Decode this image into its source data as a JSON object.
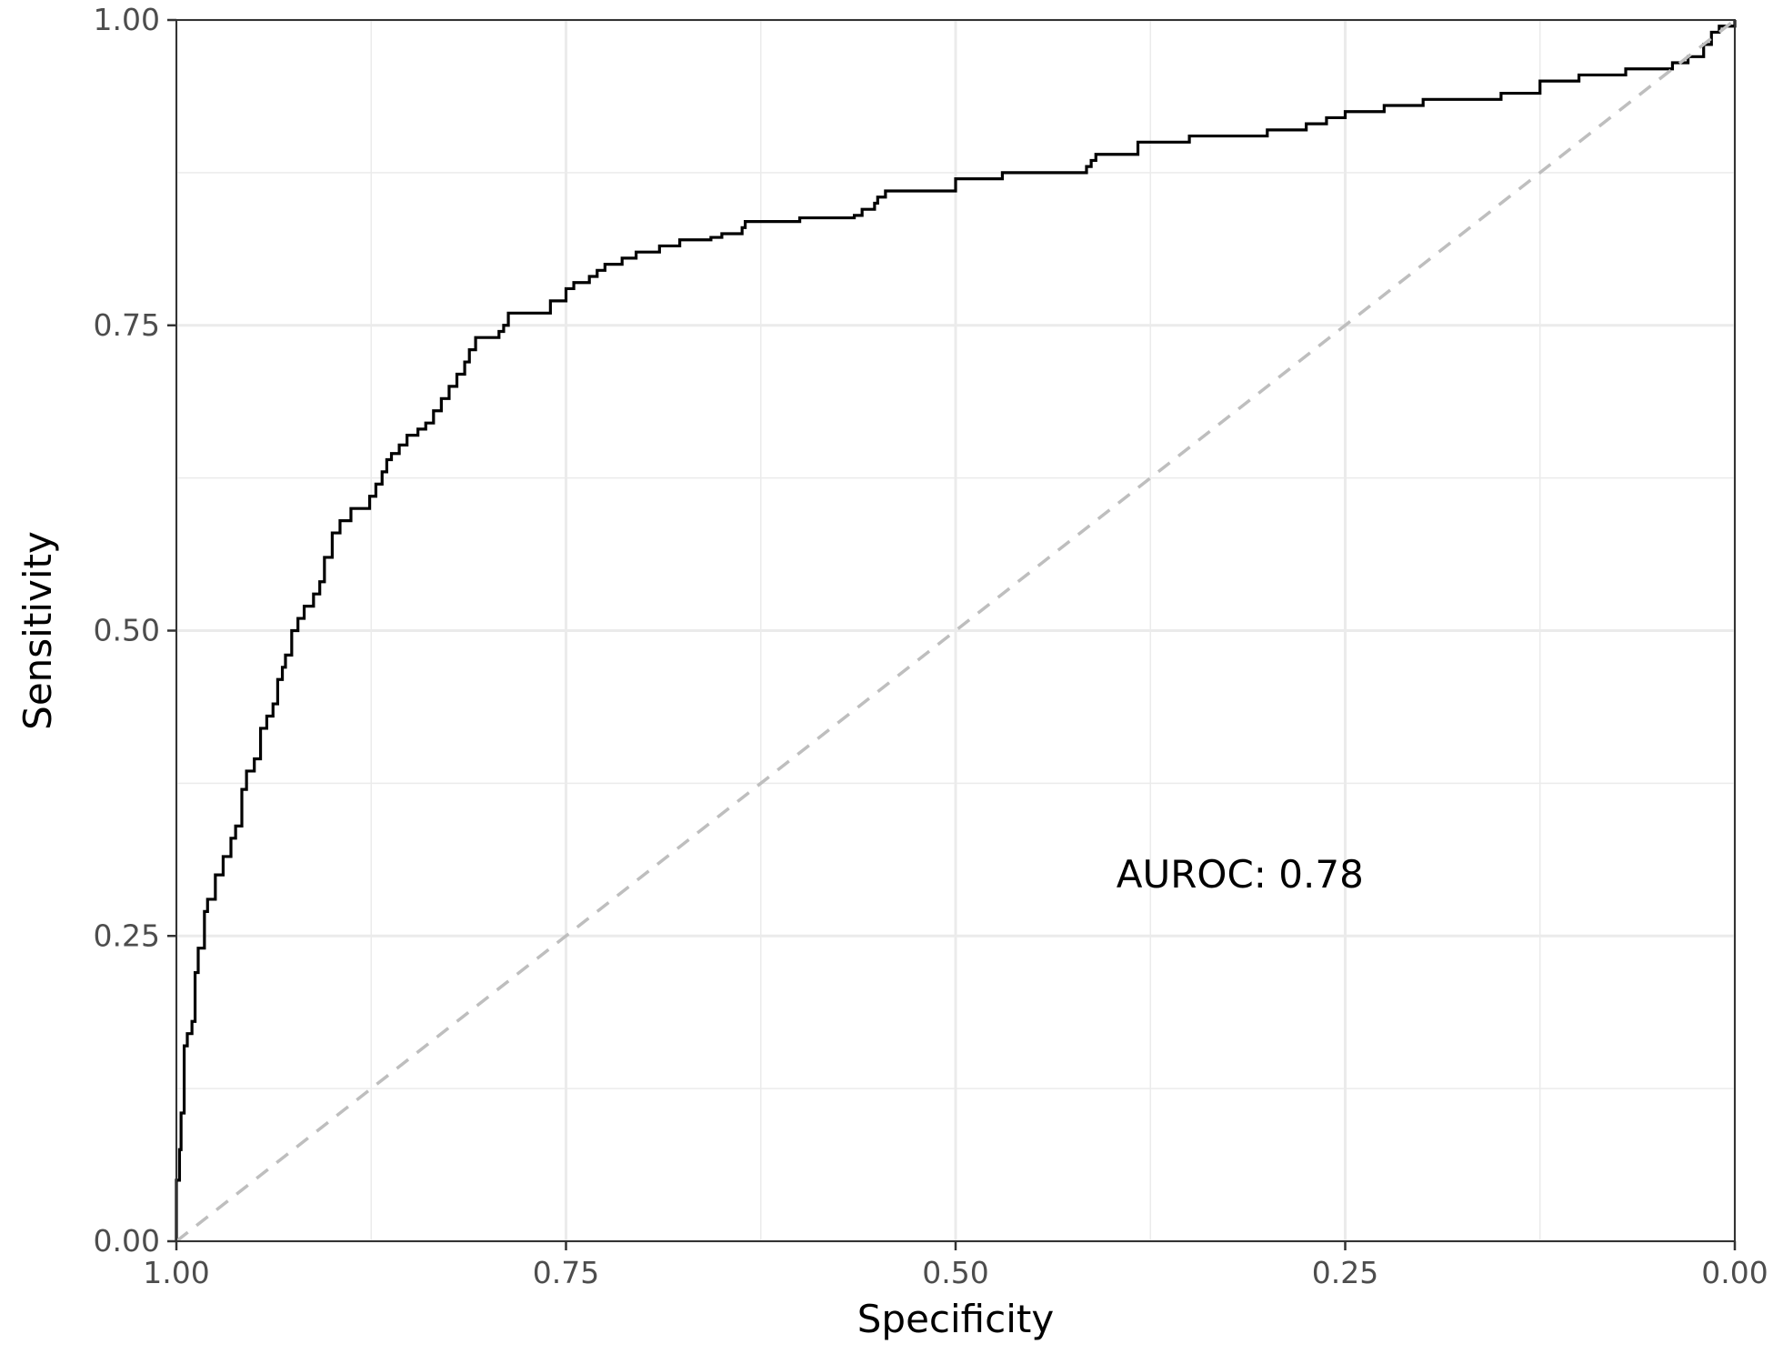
{
  "chart_data": {
    "type": "line",
    "title": "",
    "xlabel": "Specificity",
    "ylabel": "Sensitivity",
    "x_reversed": true,
    "xlim": [
      1.0,
      0.0
    ],
    "ylim": [
      0.0,
      1.0
    ],
    "x_ticks": [
      "1.00",
      "0.75",
      "0.50",
      "0.25",
      "0.00"
    ],
    "y_ticks": [
      "0.00",
      "0.25",
      "0.50",
      "0.75",
      "1.00"
    ],
    "x_tick_values": [
      1.0,
      0.75,
      0.5,
      0.25,
      0.0
    ],
    "y_tick_values": [
      0.0,
      0.25,
      0.5,
      0.75,
      1.0
    ],
    "grid": true,
    "annotation": "AUROC: 0.78",
    "annotation_at": {
      "specificity": 0.3,
      "sensitivity": 0.3
    },
    "series": [
      {
        "color": "#000000",
        "style": "step",
        "specificity": [
          1.0,
          0.998,
          0.997,
          0.995,
          0.993,
          0.99,
          0.988,
          0.986,
          0.982,
          0.98,
          0.975,
          0.97,
          0.965,
          0.962,
          0.958,
          0.955,
          0.95,
          0.946,
          0.942,
          0.938,
          0.935,
          0.932,
          0.93,
          0.926,
          0.922,
          0.918,
          0.912,
          0.908,
          0.905,
          0.9,
          0.895,
          0.888,
          0.876,
          0.872,
          0.868,
          0.865,
          0.862,
          0.857,
          0.852,
          0.845,
          0.84,
          0.835,
          0.83,
          0.825,
          0.82,
          0.815,
          0.812,
          0.808,
          0.793,
          0.79,
          0.787,
          0.76,
          0.75,
          0.745,
          0.735,
          0.73,
          0.725,
          0.714,
          0.705,
          0.69,
          0.677,
          0.657,
          0.65,
          0.637,
          0.635,
          0.6,
          0.565,
          0.56,
          0.552,
          0.55,
          0.545,
          0.5,
          0.47,
          0.416,
          0.413,
          0.41,
          0.383,
          0.35,
          0.3,
          0.275,
          0.262,
          0.25,
          0.225,
          0.2,
          0.15,
          0.125,
          0.1,
          0.07,
          0.04,
          0.03,
          0.02,
          0.015,
          0.01,
          0.0
        ],
        "sensitivity": [
          0.05,
          0.075,
          0.105,
          0.16,
          0.17,
          0.18,
          0.22,
          0.24,
          0.27,
          0.28,
          0.3,
          0.315,
          0.33,
          0.34,
          0.37,
          0.385,
          0.395,
          0.42,
          0.43,
          0.44,
          0.46,
          0.47,
          0.48,
          0.5,
          0.51,
          0.52,
          0.53,
          0.54,
          0.56,
          0.58,
          0.59,
          0.6,
          0.61,
          0.62,
          0.63,
          0.64,
          0.645,
          0.652,
          0.66,
          0.665,
          0.67,
          0.68,
          0.69,
          0.7,
          0.71,
          0.72,
          0.73,
          0.74,
          0.745,
          0.75,
          0.76,
          0.77,
          0.78,
          0.785,
          0.79,
          0.795,
          0.8,
          0.805,
          0.81,
          0.815,
          0.82,
          0.822,
          0.825,
          0.83,
          0.835,
          0.838,
          0.84,
          0.845,
          0.85,
          0.855,
          0.86,
          0.87,
          0.875,
          0.88,
          0.885,
          0.89,
          0.9,
          0.905,
          0.91,
          0.915,
          0.92,
          0.925,
          0.93,
          0.935,
          0.94,
          0.95,
          0.955,
          0.96,
          0.965,
          0.97,
          0.98,
          0.99,
          0.995,
          1.0
        ]
      },
      {
        "color": "#bebebe",
        "style": "dashed",
        "specificity": [
          1.0,
          0.0
        ],
        "sensitivity": [
          0.0,
          1.0
        ]
      }
    ]
  }
}
